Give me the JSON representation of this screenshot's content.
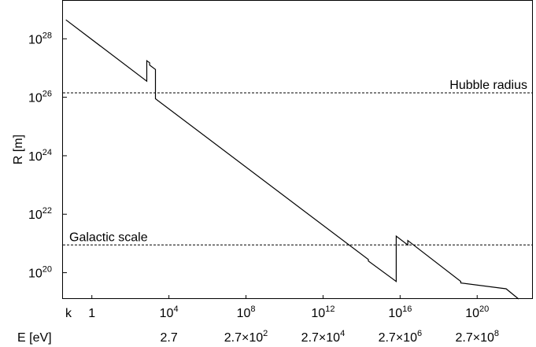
{
  "chart_data": {
    "type": "line",
    "xscale": "log",
    "yscale": "log",
    "xlim_log10": [
      -1.5,
      22.85
    ],
    "ylim_log10": [
      19.1,
      29.3
    ],
    "ylabel": "R [m]",
    "y_ticks": [
      {
        "exp": 20,
        "base": "10",
        "sup": "20"
      },
      {
        "exp": 22,
        "base": "10",
        "sup": "22"
      },
      {
        "exp": 24,
        "base": "10",
        "sup": "24"
      },
      {
        "exp": 26,
        "base": "10",
        "sup": "26"
      },
      {
        "exp": 28,
        "base": "10",
        "sup": "28"
      }
    ],
    "k_axis": {
      "label": "k",
      "ticks": [
        {
          "exp": 0,
          "text": "1",
          "sup": ""
        },
        {
          "exp": 4,
          "text": "10",
          "sup": "4"
        },
        {
          "exp": 8,
          "text": "10",
          "sup": "8"
        },
        {
          "exp": 12,
          "text": "10",
          "sup": "12"
        },
        {
          "exp": 16,
          "text": "10",
          "sup": "16"
        },
        {
          "exp": 20,
          "text": "10",
          "sup": "20"
        }
      ]
    },
    "e_axis": {
      "label": "E [eV]",
      "ticks": [
        {
          "exp": 4,
          "text": "2.7",
          "sup": ""
        },
        {
          "exp": 8,
          "text": "2.7×10",
          "sup": "2"
        },
        {
          "exp": 12,
          "text": "2.7×10",
          "sup": "4"
        },
        {
          "exp": 16,
          "text": "2.7×10",
          "sup": "6"
        },
        {
          "exp": 20,
          "text": "2.7×10",
          "sup": "8"
        }
      ]
    },
    "reference_lines": [
      {
        "label": "Hubble radius",
        "log10_y": 26.15,
        "label_position": "right"
      },
      {
        "label": "Galactic scale",
        "log10_y": 20.95,
        "label_position": "left"
      }
    ],
    "series": [
      {
        "log10_points": [
          [
            -1.35,
            28.65
          ],
          [
            2.85,
            26.55
          ],
          [
            2.85,
            27.25
          ],
          [
            3.0,
            27.18
          ],
          [
            3.0,
            27.1
          ],
          [
            3.3,
            26.95
          ],
          [
            3.3,
            25.95
          ],
          [
            14.35,
            20.45
          ],
          [
            14.35,
            20.4
          ],
          [
            15.8,
            19.7
          ],
          [
            15.8,
            21.25
          ],
          [
            16.4,
            20.95
          ],
          [
            16.4,
            21.1
          ],
          [
            19.15,
            19.7
          ],
          [
            19.15,
            19.65
          ],
          [
            21.5,
            19.45
          ],
          [
            22.15,
            19.1
          ]
        ]
      }
    ]
  }
}
